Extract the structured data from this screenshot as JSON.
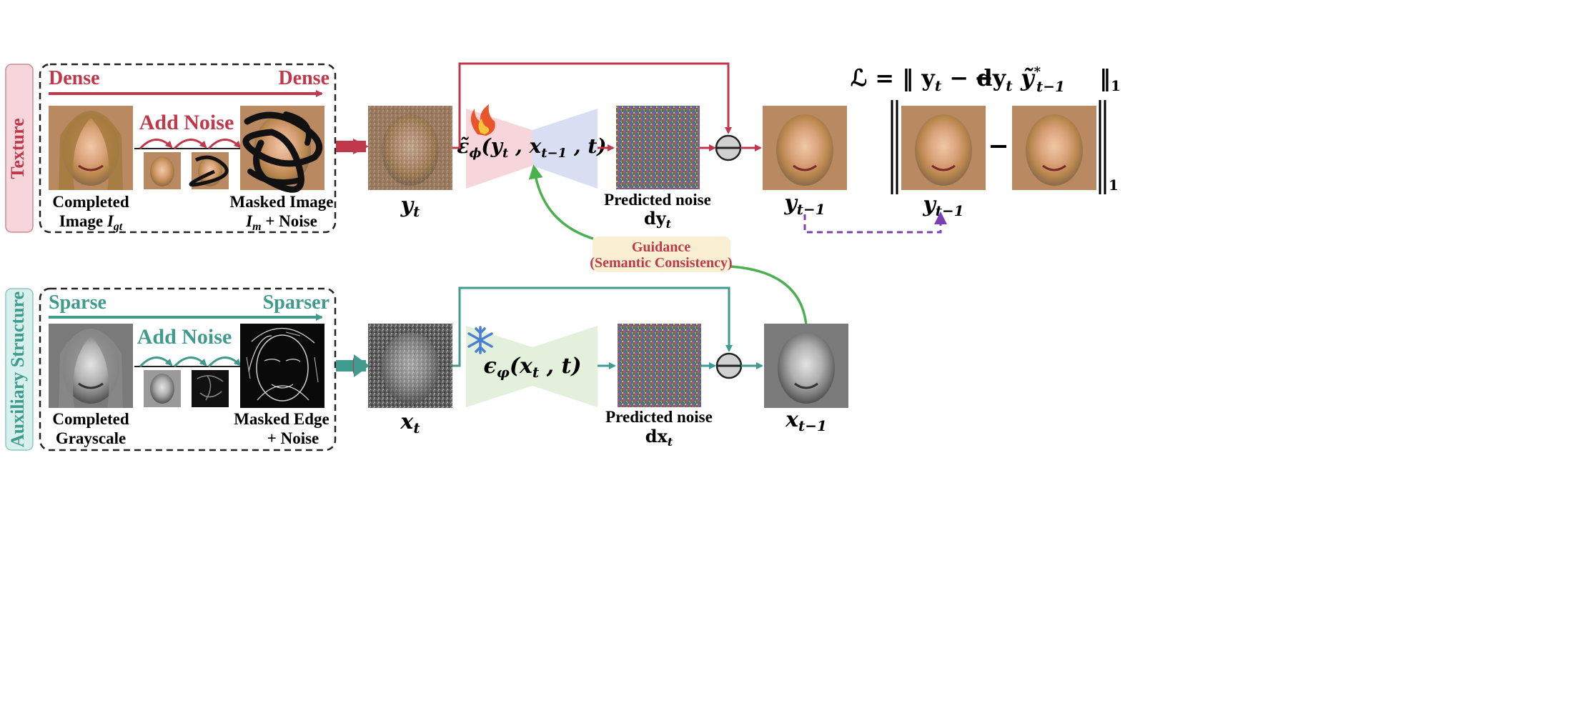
{
  "texture": {
    "row_label": "Texture",
    "density_start": "Dense",
    "density_end": "Dense",
    "add_noise": "Add Noise",
    "completed_label": [
      "Completed",
      "Image "
    ],
    "completed_sym": "I",
    "completed_sub": "gt",
    "masked_label": "Masked Image",
    "masked_sym": "I",
    "masked_sub": "m",
    "masked_rest": " + Noise",
    "yt_sym": "y",
    "yt_sub": "t",
    "network": "ε̃",
    "network_sub": "ϕ",
    "network_args": "(y",
    "network_args_sub1": "t",
    "network_mid": " , x",
    "network_args_sub2": "t−1",
    "network_end": " , t)",
    "pred_label": "Predicted noise",
    "pred_sym": "dy",
    "pred_sub": "t",
    "out_sym": "y",
    "out_sub": "t−1",
    "colors": {
      "primary": "#c0394b",
      "light": "#f6d6db",
      "blue": "#d9dff3"
    },
    "icon": "flame-icon"
  },
  "structure": {
    "row_label": "Auxiliary Structure",
    "density_start": "Sparse",
    "density_end": "Sparser",
    "add_noise": "Add Noise",
    "completed_label": [
      "Completed",
      "Grayscale"
    ],
    "masked_label": [
      "Masked Edge",
      "+ Noise"
    ],
    "xt_sym": "x",
    "xt_sub": "t",
    "network": "ϵ",
    "network_sub": "φ",
    "network_args": "(x",
    "network_args_sub": "t",
    "network_end": " , t)",
    "pred_label": "Predicted noise",
    "pred_sym": "dx",
    "pred_sub": "t",
    "out_sym": "x",
    "out_sub": "t−1",
    "colors": {
      "primary": "#3f9b8d",
      "light": "#e3f1dc",
      "label_bg": "#d7efed"
    },
    "icon": "snowflake-icon"
  },
  "guidance": {
    "line1": "Guidance",
    "line2": "(Semantic Consistency)",
    "colors": {
      "bg": "#fbefd3",
      "text": "#c0394b",
      "arrow": "#4caf50"
    }
  },
  "loss": {
    "lhs": "ℒ = ‖ y",
    "lhs_sub": "t",
    "minus_d": " − dy",
    "minus_d_sub": "t",
    "minus": "−",
    "tilde": "ỹ",
    "tilde_sup": "*",
    "tilde_sub": "t−1",
    "close": "‖",
    "norm_sub": "1",
    "panel_sym": "y",
    "panel_sub": "t−1",
    "colors": {
      "dashed": "#7b3fb5"
    }
  }
}
